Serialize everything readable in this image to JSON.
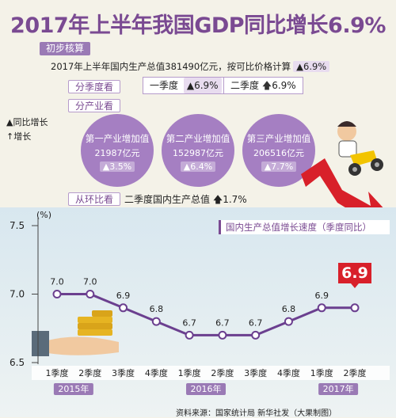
{
  "title": "2017年上半年我国GDP同比增长6.9%",
  "sections": {
    "preliminary": "初步核算",
    "by_quarter": "分季度看",
    "by_industry": "分产业看",
    "mom": "从环比看"
  },
  "summary": {
    "text": "2017年上半年国内生产总值381490亿元，按可比价格计算",
    "growth": "▲6.9%"
  },
  "quarters": {
    "q1_label": "一季度",
    "q1_value": "▲6.9%",
    "q2_label": "二季度",
    "q2_value": "6.9%"
  },
  "legend": {
    "yoy": "▲同比增长",
    "growth": "↑增长"
  },
  "industries": [
    {
      "name": "第一产业增加值",
      "value": "21987亿元",
      "growth": "▲3.5%"
    },
    {
      "name": "第二产业增加值",
      "value": "152987亿元",
      "growth": "▲6.4%"
    },
    {
      "name": "第三产业增加值",
      "value": "206516亿元",
      "growth": "▲7.7%"
    }
  ],
  "mom_text": "二季度国内生产总值",
  "mom_value": "1.7%",
  "chart_data": {
    "type": "line",
    "title": "国内生产总值增长速度（季度同比）",
    "unit": "(%)",
    "x": [
      "1季度",
      "2季度",
      "3季度",
      "4季度",
      "1季度",
      "2季度",
      "3季度",
      "4季度",
      "1季度",
      "2季度"
    ],
    "years": [
      {
        "label": "2015年",
        "from": 0,
        "to": 1
      },
      {
        "label": "2016年",
        "from": 4,
        "to": 5
      },
      {
        "label": "2017年",
        "from": 8,
        "to": 9
      }
    ],
    "series": [
      {
        "values": [
          7.0,
          7.0,
          6.9,
          6.8,
          6.7,
          6.7,
          6.7,
          6.8,
          6.9,
          6.9
        ]
      }
    ],
    "yticks": [
      7.5,
      7.0,
      6.5
    ],
    "ylim": [
      6.5,
      7.5
    ],
    "highlight": "6.9",
    "colors": {
      "line": "#6b3f8f",
      "marker_fill": "#ffffff",
      "highlight": "#d8202a"
    }
  },
  "source": "资料来源：国家统计局  新华社发（大果制图）"
}
